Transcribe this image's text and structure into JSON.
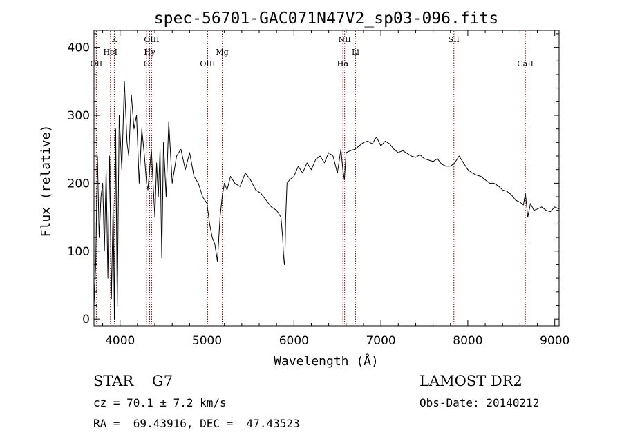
{
  "chart_data": {
    "type": "line",
    "title": "spec-56701-GAC071N47V2_sp03-096.fits",
    "xlabel": "Wavelength (Å)",
    "ylabel": "Flux (relative)",
    "xlim": [
      3700,
      9050
    ],
    "ylim": [
      -10,
      425
    ],
    "xticks": [
      4000,
      5000,
      6000,
      7000,
      8000,
      9000
    ],
    "yticks": [
      0,
      100,
      200,
      300,
      400
    ],
    "grid": false,
    "line_color": "#000000",
    "marker_color": "#8b0000",
    "lines": [
      {
        "label": "OII",
        "wavelength": 3727,
        "row": 3
      },
      {
        "label": "HeI",
        "wavelength": 3889,
        "row": 2
      },
      {
        "label": "K",
        "wavelength": 3934,
        "row": 1
      },
      {
        "label": "OIII",
        "wavelength": 4363,
        "row": 1
      },
      {
        "label": "Hγ",
        "wavelength": 4340,
        "row": 2
      },
      {
        "label": "G",
        "wavelength": 4305,
        "row": 3
      },
      {
        "label": "OIII",
        "wavelength": 5007,
        "row": 3
      },
      {
        "label": "Mg",
        "wavelength": 5175,
        "row": 2
      },
      {
        "label": "NII",
        "wavelength": 6583,
        "row": 1
      },
      {
        "label": "Hα",
        "wavelength": 6563,
        "row": 3
      },
      {
        "label": "Li",
        "wavelength": 6708,
        "row": 2
      },
      {
        "label": "SII",
        "wavelength": 7840,
        "row": 1
      },
      {
        "label": "CaII",
        "wavelength": 8662,
        "row": 3
      }
    ],
    "series": [
      {
        "x": [
          3700,
          3720,
          3740,
          3760,
          3780,
          3800,
          3820,
          3840,
          3860,
          3880,
          3900,
          3920,
          3935,
          3950,
          3968,
          3990,
          4020,
          4050,
          4080,
          4100,
          4130,
          4160,
          4190,
          4220,
          4250,
          4280,
          4305,
          4320,
          4340,
          4360,
          4380,
          4400,
          4420,
          4440,
          4460,
          4480,
          4500,
          4530,
          4560,
          4600,
          4650,
          4700,
          4750,
          4800,
          4850,
          4900,
          4950,
          5000,
          5030,
          5060,
          5090,
          5120,
          5150,
          5175,
          5200,
          5230,
          5270,
          5320,
          5380,
          5440,
          5500,
          5560,
          5620,
          5680,
          5740,
          5800,
          5850,
          5870,
          5880,
          5890,
          5896,
          5905,
          5920,
          5950,
          6000,
          6050,
          6100,
          6150,
          6200,
          6250,
          6300,
          6350,
          6400,
          6450,
          6500,
          6540,
          6563,
          6580,
          6600,
          6650,
          6700,
          6750,
          6800,
          6850,
          6900,
          6950,
          7000,
          7050,
          7100,
          7150,
          7200,
          7250,
          7300,
          7350,
          7400,
          7450,
          7500,
          7550,
          7600,
          7650,
          7700,
          7750,
          7800,
          7850,
          7900,
          7950,
          8000,
          8050,
          8100,
          8150,
          8200,
          8250,
          8300,
          8350,
          8400,
          8450,
          8500,
          8550,
          8600,
          8640,
          8662,
          8690,
          8720,
          8760,
          8800,
          8850,
          8900,
          8950,
          9000,
          9050
        ],
        "y": [
          20,
          80,
          240,
          120,
          180,
          200,
          100,
          220,
          60,
          240,
          30,
          170,
          0,
          280,
          20,
          300,
          220,
          350,
          260,
          240,
          330,
          280,
          300,
          200,
          280,
          240,
          200,
          190,
          220,
          250,
          200,
          150,
          230,
          180,
          250,
          90,
          260,
          180,
          290,
          200,
          240,
          250,
          220,
          245,
          210,
          200,
          180,
          170,
          140,
          120,
          110,
          85,
          150,
          180,
          200,
          190,
          210,
          200,
          195,
          215,
          205,
          190,
          185,
          175,
          165,
          160,
          150,
          120,
          95,
          80,
          85,
          150,
          200,
          205,
          210,
          225,
          215,
          230,
          220,
          235,
          240,
          230,
          245,
          240,
          215,
          250,
          220,
          205,
          245,
          248,
          250,
          255,
          260,
          262,
          258,
          268,
          255,
          262,
          258,
          250,
          245,
          248,
          244,
          240,
          238,
          242,
          236,
          234,
          232,
          236,
          228,
          225,
          225,
          230,
          240,
          230,
          220,
          215,
          212,
          210,
          205,
          200,
          200,
          196,
          190,
          188,
          183,
          175,
          172,
          168,
          185,
          150,
          170,
          160,
          162,
          165,
          160,
          158,
          165,
          162
        ]
      }
    ]
  },
  "info": {
    "object": "STAR    G7",
    "cz": "cz = 70.1 ± 7.2 km/s",
    "radec": "RA =  69.43916, DEC =  47.43523",
    "survey": "LAMOST DR2",
    "obsdate": "Obs-Date: 20140212"
  }
}
